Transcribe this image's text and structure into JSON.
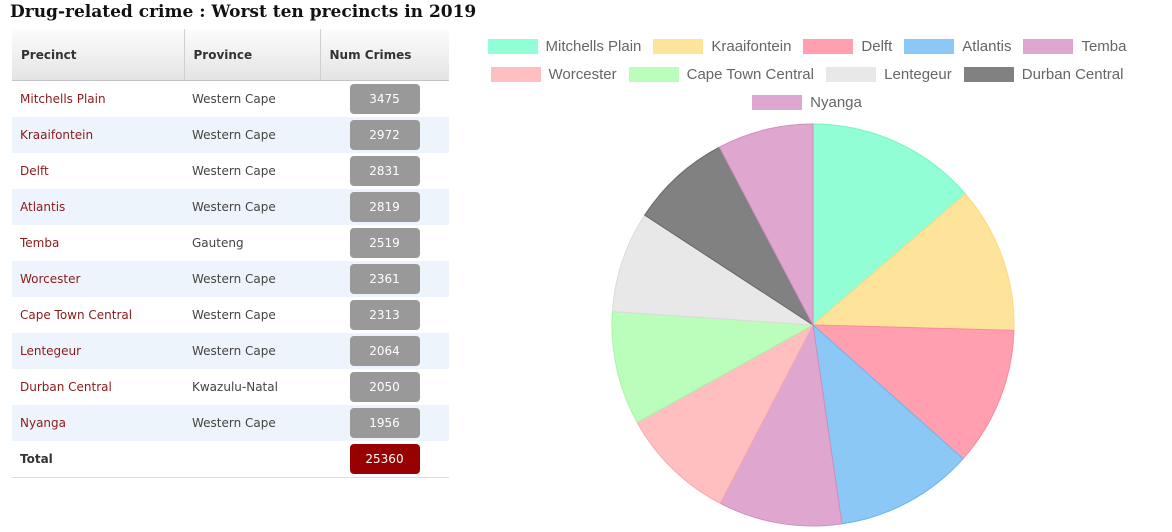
{
  "page": {
    "title": "Drug-related crime : Worst ten precincts in 2019"
  },
  "table": {
    "headers": {
      "precinct": "Precinct",
      "province": "Province",
      "num_crimes": "Num Crimes"
    },
    "rows": [
      {
        "precinct": "Mitchells Plain",
        "province": "Western Cape",
        "num": "3475"
      },
      {
        "precinct": "Kraaifontein",
        "province": "Western Cape",
        "num": "2972"
      },
      {
        "precinct": "Delft",
        "province": "Western Cape",
        "num": "2831"
      },
      {
        "precinct": "Atlantis",
        "province": "Western Cape",
        "num": "2819"
      },
      {
        "precinct": "Temba",
        "province": "Gauteng",
        "num": "2519"
      },
      {
        "precinct": "Worcester",
        "province": "Western Cape",
        "num": "2361"
      },
      {
        "precinct": "Cape Town Central",
        "province": "Western Cape",
        "num": "2313"
      },
      {
        "precinct": "Lentegeur",
        "province": "Western Cape",
        "num": "2064"
      },
      {
        "precinct": "Durban Central",
        "province": "Kwazulu-Natal",
        "num": "2050"
      },
      {
        "precinct": "Nyanga",
        "province": "Western Cape",
        "num": "1956"
      }
    ],
    "total_label": "Total",
    "total_value": "25360"
  },
  "chart_data": {
    "type": "pie",
    "title": "",
    "legend_position": "top",
    "categories": [
      "Mitchells Plain",
      "Kraaifontein",
      "Delft",
      "Atlantis",
      "Temba",
      "Worcester",
      "Cape Town Central",
      "Lentegeur",
      "Durban Central",
      "Nyanga"
    ],
    "values": [
      3475,
      2972,
      2831,
      2819,
      2519,
      2361,
      2313,
      2064,
      2050,
      1956
    ],
    "colors": [
      "#91fed6",
      "#fee39b",
      "#ff9fb0",
      "#8bc8f6",
      "#dfa7cf",
      "#ffbfc0",
      "#bbfebc",
      "#e8e8e8",
      "#818181",
      "#dfa7cf"
    ],
    "border_colors": [
      "#7af3c3",
      "#fdd97c",
      "#fb8a9e",
      "#6cb6ef",
      "#cf8fbd",
      "#f8a9ab",
      "#a5f5a6",
      "#dadada",
      "#666666",
      "#cf8fbd"
    ]
  }
}
